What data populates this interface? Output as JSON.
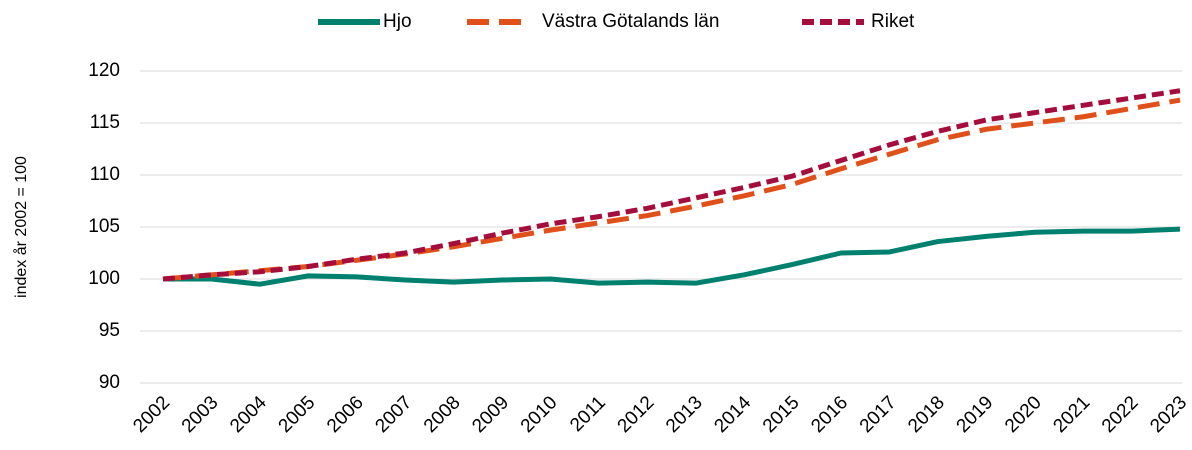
{
  "chart_data": {
    "type": "line",
    "y_label": "index år 2002 = 100",
    "categories": [
      "2002",
      "2003",
      "2004",
      "2005",
      "2006",
      "2007",
      "2008",
      "2009",
      "2010",
      "2011",
      "2012",
      "2013",
      "2014",
      "2015",
      "2016",
      "2017",
      "2018",
      "2019",
      "2020",
      "2021",
      "2022",
      "2023"
    ],
    "series": [
      {
        "name": "Hjo",
        "color": "#00806f",
        "dash": "none",
        "values": [
          100,
          100,
          99.5,
          100.3,
          100.2,
          99.9,
          99.7,
          99.9,
          100.0,
          99.6,
          99.7,
          99.6,
          100.4,
          101.4,
          102.5,
          102.6,
          103.6,
          104.1,
          104.5,
          104.6,
          104.6,
          104.8
        ]
      },
      {
        "name": "Västra Götalands län",
        "color": "#e0501a",
        "dash": "22 10",
        "values": [
          100,
          100.4,
          100.8,
          101.2,
          101.8,
          102.4,
          103.1,
          103.9,
          104.7,
          105.4,
          106.1,
          107.0,
          108.0,
          109.1,
          110.6,
          112.0,
          113.4,
          114.4,
          115.0,
          115.6,
          116.4,
          117.2
        ]
      },
      {
        "name": "Riket",
        "color": "#a50d3c",
        "dash": "12 6",
        "values": [
          100,
          100.4,
          100.7,
          101.2,
          101.9,
          102.5,
          103.4,
          104.4,
          105.3,
          106.0,
          106.8,
          107.8,
          108.8,
          109.9,
          111.4,
          112.9,
          114.2,
          115.3,
          116.0,
          116.7,
          117.4,
          118.1
        ]
      }
    ],
    "ylim": [
      90,
      120
    ],
    "yticks": [
      90,
      95,
      100,
      105,
      110,
      115,
      120
    ],
    "grid": true,
    "legend": "top"
  }
}
